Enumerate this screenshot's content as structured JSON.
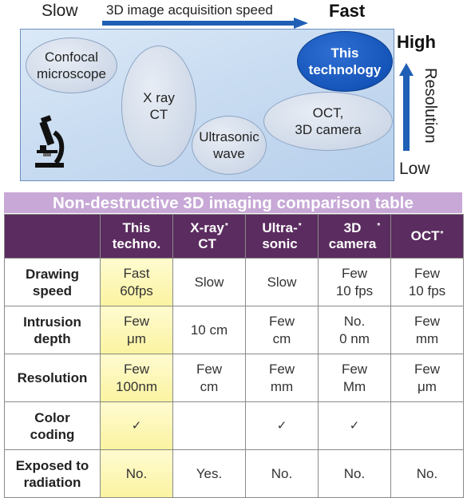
{
  "diagram": {
    "speed_low_label": "Slow",
    "speed_high_label": "Fast",
    "speed_axis_label": "3D image acquisition speed",
    "resolution_high_label": "High",
    "resolution_low_label": "Low",
    "resolution_axis_label": "Resolution",
    "technologies": [
      {
        "name": "Confocal\nmicroscope"
      },
      {
        "name": "X ray\nCT"
      },
      {
        "name": "Ultrasonic\nwave"
      },
      {
        "name": "OCT,\n3D camera"
      },
      {
        "name": "This\ntechnology"
      }
    ],
    "icon": "microscope-icon",
    "colors": {
      "arrow": "#1f5fb5",
      "highlight": "#1554b8",
      "panel": "#c9dcf1"
    }
  },
  "table": {
    "title": "Non-destructive 3D imaging comparison table",
    "columns": [
      {
        "label": "This\ntechno.",
        "asterisk": ""
      },
      {
        "label": "X-ray\nCT",
        "asterisk": "*"
      },
      {
        "label": "Ultra-\nsonic",
        "asterisk": "*"
      },
      {
        "label": "3D\ncamera",
        "asterisk": "*"
      },
      {
        "label": "OCT",
        "asterisk": "*"
      }
    ],
    "rows": [
      {
        "label": "Drawing\nspeed",
        "cells": [
          "Fast\n60fps",
          "Slow",
          "Slow",
          "Few\n10 fps",
          "Few\n10 fps"
        ]
      },
      {
        "label": "Intrusion\ndepth",
        "cells": [
          "Few\nμm",
          "10 cm",
          "Few\ncm",
          "No.\n0 nm",
          "Few\nmm"
        ]
      },
      {
        "label": "Resolution",
        "cells": [
          "Few\n100nm",
          "Few\ncm",
          "Few\nmm",
          "Few\nMm",
          "Few\nμm"
        ]
      },
      {
        "label": "Color\ncoding",
        "cells": [
          "✓",
          "",
          "✓",
          "✓",
          ""
        ]
      },
      {
        "label": "Exposed to\nradiation",
        "cells": [
          "No.",
          "Yes.",
          "No.",
          "No.",
          "No."
        ]
      }
    ],
    "colors": {
      "header": "#5b2c5f",
      "title_bar": "#c7a8d6",
      "highlight_column": "#fbf3a0"
    }
  }
}
